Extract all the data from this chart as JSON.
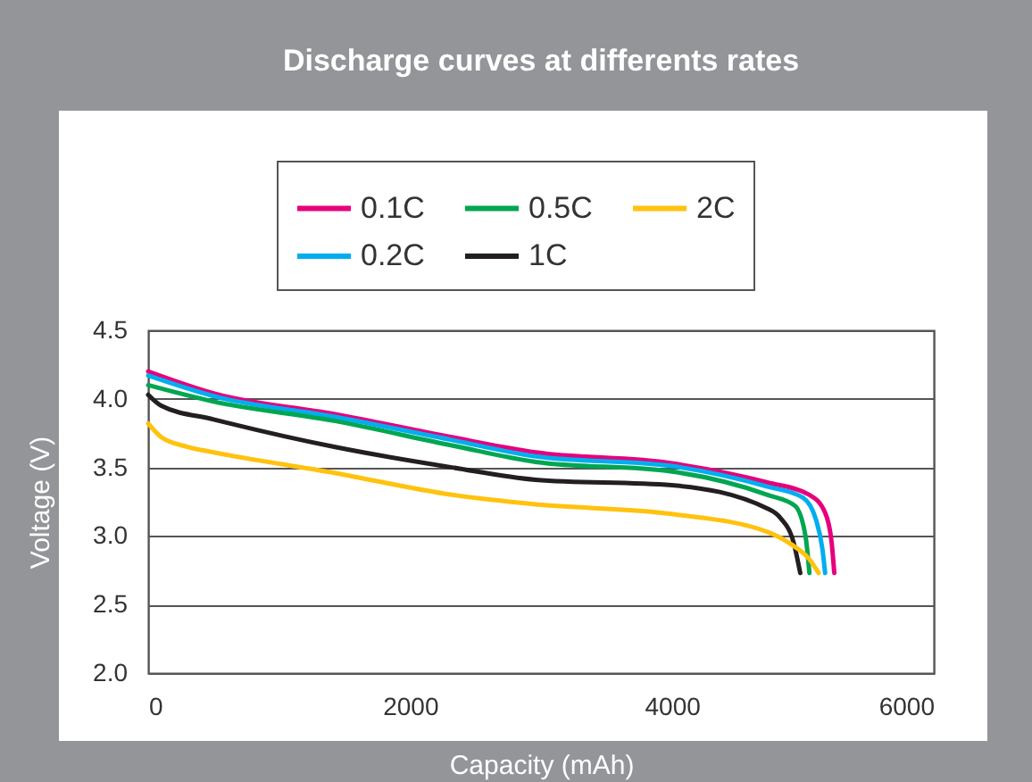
{
  "chart_data": {
    "type": "line",
    "title": "Discharge curves at differents rates",
    "xlabel": "Capacity (mAh)",
    "ylabel": "Voltage (V)",
    "xlim": [
      0,
      6000
    ],
    "xticks": [
      0,
      2000,
      4000,
      6000
    ],
    "ylim": [
      2.0,
      4.5
    ],
    "yticks": [
      {
        "value": 2.0,
        "label": "2.0"
      },
      {
        "value": 2.5,
        "label": "2.5"
      },
      {
        "value": 3.0,
        "label": "3.0"
      },
      {
        "value": 3.5,
        "label": "3.5"
      },
      {
        "value": 4.0,
        "label": "4.0"
      },
      {
        "value": 4.5,
        "label": "4.5"
      }
    ],
    "grid": "y",
    "legend": "top",
    "line_style": "solid",
    "marker": "none",
    "series": [
      {
        "name": "0.1C",
        "color": "#e6007e",
        "x": [
          0,
          500,
          1420,
          2320,
          2960,
          4000,
          4730,
          5050,
          5170,
          5220,
          5240
        ],
        "values": [
          4.2,
          4.04,
          3.89,
          3.72,
          3.61,
          3.53,
          3.39,
          3.3,
          3.17,
          2.95,
          2.73
        ]
      },
      {
        "name": "0.2C",
        "color": "#00aeef",
        "x": [
          0,
          500,
          1420,
          2320,
          2960,
          4000,
          4730,
          5000,
          5100,
          5150,
          5170
        ],
        "values": [
          4.17,
          4.02,
          3.87,
          3.7,
          3.58,
          3.51,
          3.36,
          3.28,
          3.12,
          2.9,
          2.73
        ]
      },
      {
        "name": "0.5C",
        "color": "#00a651",
        "x": [
          0,
          500,
          1420,
          2320,
          2960,
          4000,
          4730,
          4940,
          5020,
          5050
        ],
        "values": [
          4.1,
          3.98,
          3.84,
          3.66,
          3.54,
          3.47,
          3.3,
          3.22,
          3.0,
          2.73
        ]
      },
      {
        "name": "1C",
        "color": "#231f20",
        "x": [
          0,
          100,
          500,
          1420,
          2320,
          2960,
          4000,
          4730,
          4830,
          4930,
          4980
        ],
        "values": [
          4.03,
          3.95,
          3.85,
          3.65,
          3.5,
          3.41,
          3.37,
          3.2,
          3.13,
          2.95,
          2.73
        ]
      },
      {
        "name": "2C",
        "color": "#ffc20e",
        "x": [
          0,
          100,
          300,
          500,
          1420,
          2320,
          2960,
          4000,
          4730,
          4910,
          5050,
          5120
        ],
        "values": [
          3.82,
          3.72,
          3.65,
          3.61,
          3.46,
          3.3,
          3.23,
          3.16,
          3.03,
          2.94,
          2.83,
          2.73
        ]
      }
    ]
  }
}
